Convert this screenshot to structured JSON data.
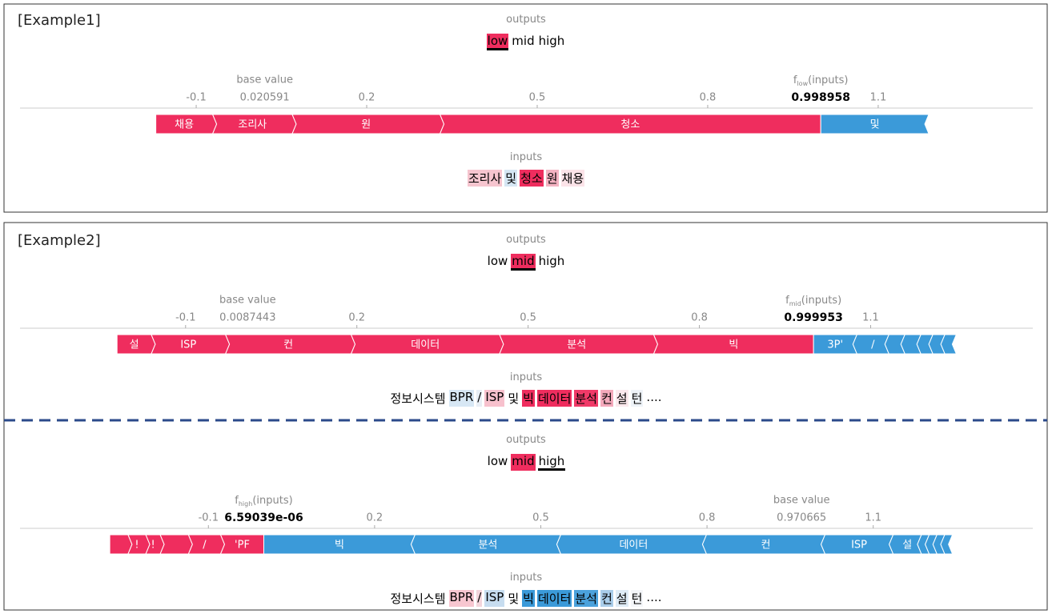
{
  "plots": [
    {
      "title": "[Example1]",
      "outputs_label": "outputs",
      "outputs": [
        "low",
        "mid",
        "high"
      ],
      "highlight": 0,
      "underline": 0,
      "highlight_color": "#ef2d5e",
      "xlim": [
        -0.41,
        1.372
      ],
      "xticks": [
        -0.1,
        0.2,
        0.5,
        0.8,
        1.1
      ],
      "base_label": "base value",
      "base_value": 0.020591,
      "f_prefix": "f",
      "f_output": 0,
      "f_suffix": "(inputs)",
      "f_value": 0.998958,
      "red_color": "#ef2d5e",
      "blue_color": "#3b9ad9",
      "red": [
        {
          "label": "채용",
          "value": 0.1
        },
        {
          "label": "조리사",
          "value": 0.14
        },
        {
          "label": "원",
          "value": 0.26
        },
        {
          "label": "청소",
          "value": 0.67
        }
      ],
      "blue": [
        {
          "label": "및",
          "value": 0.19
        }
      ],
      "inputs_label": "inputs",
      "inputs": [
        {
          "text": "조리사",
          "color": "#f6c5cf"
        },
        {
          "text": "및",
          "color": "#d5e6f3"
        },
        {
          "text": "청소",
          "color": "#ef2d5e"
        },
        {
          "text": "원",
          "color": "#f4b3c2"
        },
        {
          "text": "채용",
          "color": "#fbe3e8"
        }
      ]
    },
    {
      "title": "[Example2]",
      "outputs_label": "outputs",
      "outputs": [
        "low",
        "mid",
        "high"
      ],
      "highlight": 1,
      "underline": 1,
      "highlight_color": "#ef2d5e",
      "xlim": [
        -0.39,
        1.384
      ],
      "xticks": [
        -0.1,
        0.2,
        0.5,
        0.8,
        1.1
      ],
      "base_label": "base value",
      "base_value": 0.0087443,
      "f_prefix": "f",
      "f_output": 1,
      "f_suffix": "(inputs)",
      "f_value": 0.999953,
      "red_color": "#ef2d5e",
      "blue_color": "#3b9ad9",
      "red": [
        {
          "label": "설",
          "value": 0.06
        },
        {
          "label": "ISP",
          "value": 0.13
        },
        {
          "label": "컨",
          "value": 0.22
        },
        {
          "label": "데이터",
          "value": 0.26
        },
        {
          "label": "분석",
          "value": 0.27
        },
        {
          "label": "빅",
          "value": 0.28
        }
      ],
      "blue": [
        {
          "label": "3P'",
          "value": 0.076
        },
        {
          "label": "/",
          "value": 0.056
        },
        {
          "label": null,
          "value": 0.028
        },
        {
          "label": null,
          "value": 0.028
        },
        {
          "label": null,
          "value": 0.021
        },
        {
          "label": null,
          "value": 0.021
        },
        {
          "label": null,
          "value": 0.02
        }
      ],
      "inputs_label": "inputs",
      "inputs": [
        {
          "text": "정보시스템",
          "color": "#ffffff"
        },
        {
          "text": "BPR",
          "color": "#d7e7f4"
        },
        {
          "text": "/",
          "color": "#e8eef5"
        },
        {
          "text": "ISP",
          "color": "#f7c1cd"
        },
        {
          "text": "및",
          "color": "#ffffff"
        },
        {
          "text": "빅",
          "color": "#ef2d5e"
        },
        {
          "text": "데이터",
          "color": "#ef2d5e"
        },
        {
          "text": "분석",
          "color": "#f03a68"
        },
        {
          "text": "컨",
          "color": "#f4a9bb"
        },
        {
          "text": "설",
          "color": "#fbe9ed"
        },
        {
          "text": "턴",
          "color": "#eef3f8"
        },
        {
          "text": "....",
          "color": "#ffffff"
        }
      ]
    },
    {
      "outputs_label": "outputs",
      "outputs": [
        "low",
        "mid",
        "high"
      ],
      "highlight": 1,
      "underline": 2,
      "highlight_color": "#ef2d5e",
      "xlim": [
        -0.44,
        1.388
      ],
      "xticks": [
        -0.1,
        0.2,
        0.5,
        0.8,
        1.1
      ],
      "base_label": "base value",
      "base_value": 0.970665,
      "f_prefix": "f",
      "f_output": 2,
      "f_suffix": "(inputs)",
      "f_value": 6.59039e-06,
      "f_value_label": "6.59039e-06",
      "red_color": "#ef2d5e",
      "blue_color": "#3b9ad9",
      "red": [
        {
          "label": null,
          "value": 0.033
        },
        {
          "label": "!",
          "value": 0.032
        },
        {
          "label": "!",
          "value": 0.026
        },
        {
          "label": null,
          "value": 0.051
        },
        {
          "label": "/",
          "value": 0.058
        },
        {
          "label": "'PF",
          "value": 0.078
        }
      ],
      "blue": [
        {
          "label": "빅",
          "value": 0.273
        },
        {
          "label": "분석",
          "value": 0.263
        },
        {
          "label": "데이터",
          "value": 0.263
        },
        {
          "label": "컨",
          "value": 0.214
        },
        {
          "label": "ISP",
          "value": 0.123
        },
        {
          "label": "설",
          "value": 0.051
        },
        {
          "label": null,
          "value": 0.014
        },
        {
          "label": null,
          "value": 0.014
        },
        {
          "label": null,
          "value": 0.014
        },
        {
          "label": null,
          "value": 0.014
        }
      ],
      "inputs_label": "inputs",
      "inputs": [
        {
          "text": "정보시스템",
          "color": "#ffffff"
        },
        {
          "text": "BPR",
          "color": "#f7c6d0"
        },
        {
          "text": "/",
          "color": "#f3d5dc"
        },
        {
          "text": "ISP",
          "color": "#c7ddf0"
        },
        {
          "text": "및",
          "color": "#ffffff"
        },
        {
          "text": "빅",
          "color": "#3b9ad9"
        },
        {
          "text": "데이터",
          "color": "#3b9ad9"
        },
        {
          "text": "분석",
          "color": "#4ba2dc"
        },
        {
          "text": "컨",
          "color": "#a9cdea"
        },
        {
          "text": "설",
          "color": "#dfecf6"
        },
        {
          "text": "턴",
          "color": "#f4f6f9"
        },
        {
          "text": "....",
          "color": "#ffffff"
        }
      ]
    }
  ]
}
